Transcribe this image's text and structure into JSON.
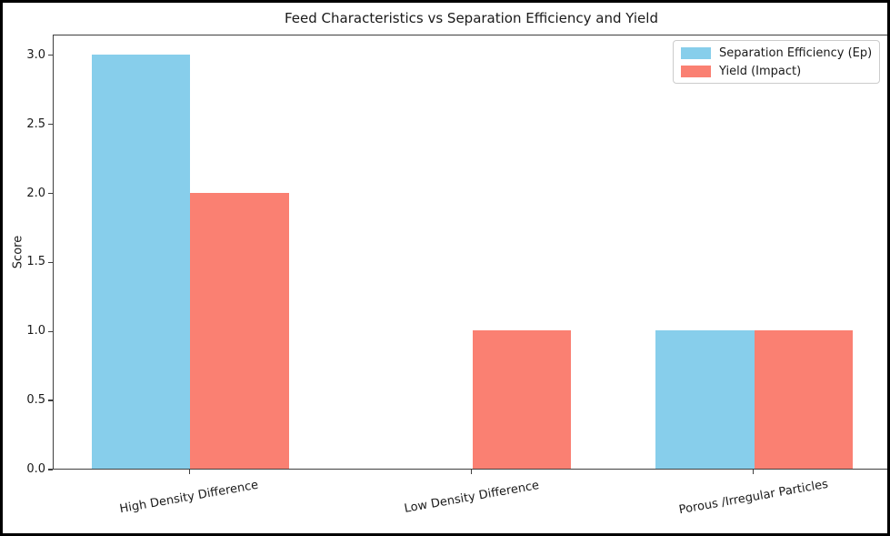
{
  "chart_data": {
    "type": "bar",
    "title": "Feed Characteristics vs Separation Efficiency and Yield",
    "xlabel": "",
    "ylabel": "Score",
    "categories": [
      "High Density Difference",
      "Low Density Difference",
      "Porous /Irregular Particles"
    ],
    "series": [
      {
        "name": "Separation Efficiency (Ep)",
        "color": "#87CEEB",
        "values": [
          3,
          0,
          1
        ]
      },
      {
        "name": "Yield (Impact)",
        "color": "#FA8072",
        "values": [
          2,
          1,
          1
        ]
      }
    ],
    "yticks": [
      0,
      0.5,
      1,
      1.5,
      2,
      2.5,
      3
    ],
    "ylim": [
      0,
      3.15
    ],
    "xlim": [
      -0.485,
      2.485
    ],
    "bar_width": 0.35,
    "grid": false,
    "legend_position": "upper right",
    "xtick_rotation": 10,
    "background_color": "#ffffff",
    "spine_color": "#3f3f3f"
  }
}
